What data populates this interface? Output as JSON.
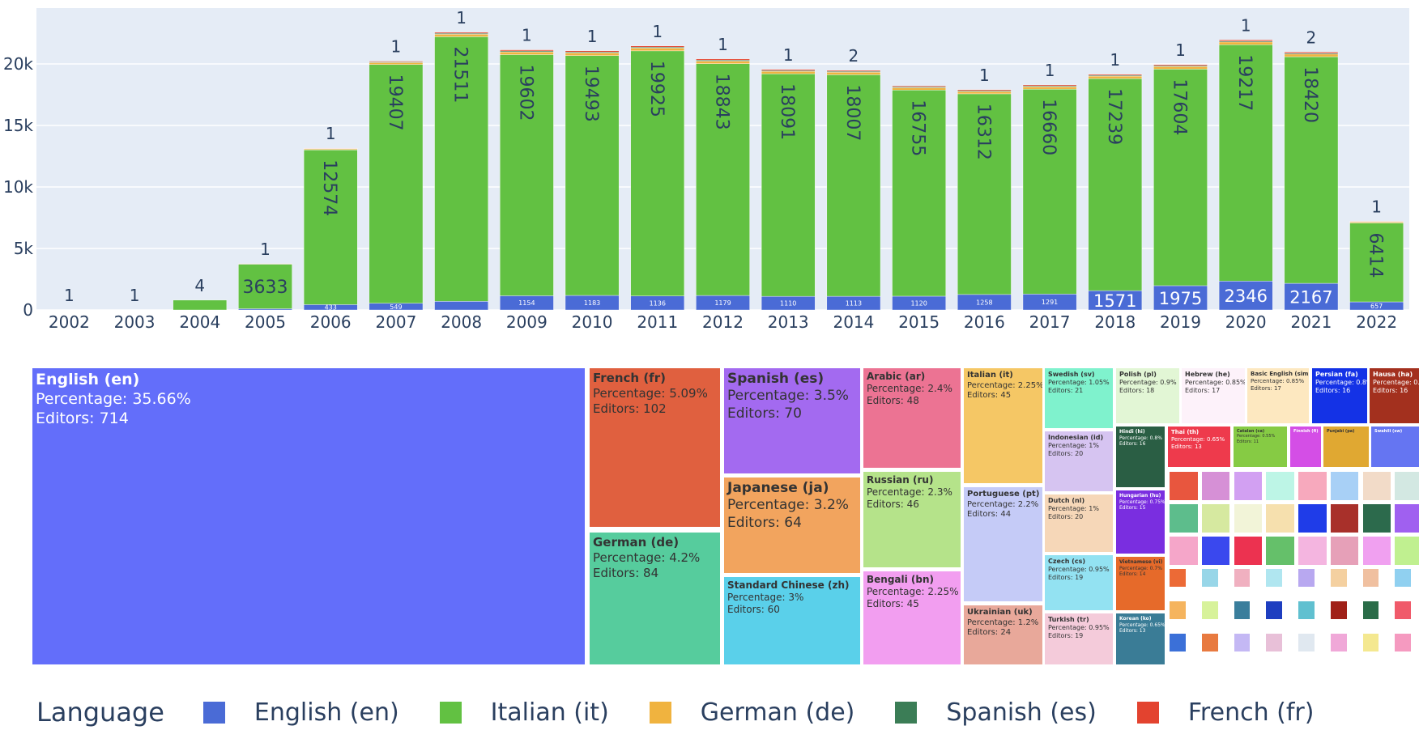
{
  "chart_data": [
    {
      "type": "bar",
      "title": "",
      "xlabel": "",
      "ylabel": "",
      "ylim": [
        0,
        25000
      ],
      "grid": true,
      "categories": [
        "2002",
        "2003",
        "2004",
        "2005",
        "2006",
        "2007",
        "2008",
        "2009",
        "2010",
        "2011",
        "2012",
        "2013",
        "2014",
        "2015",
        "2016",
        "2017",
        "2018",
        "2019",
        "2020",
        "2021",
        "2022"
      ],
      "yticks": [
        {
          "value": 0,
          "label": "0"
        },
        {
          "value": 5000,
          "label": "5k"
        },
        {
          "value": 10000,
          "label": "10k"
        },
        {
          "value": 15000,
          "label": "15k"
        },
        {
          "value": 20000,
          "label": "20k"
        }
      ],
      "series": [
        {
          "name": "English (en)",
          "color": "#4a6bd6",
          "values": [
            0,
            0,
            0,
            100,
            433,
            549,
            700,
            1154,
            1183,
            1136,
            1179,
            1110,
            1113,
            1120,
            1258,
            1291,
            1571,
            1975,
            2346,
            2167,
            657
          ],
          "labels": [
            "",
            "",
            "",
            "",
            "433",
            "549",
            "",
            "1154",
            "1183",
            "1136",
            "1179",
            "1110",
            "1113",
            "1120",
            "1258",
            "1291",
            "1571",
            "1975",
            "2346",
            "2167",
            "657"
          ]
        },
        {
          "name": "Italian (it)",
          "color": "#62c142",
          "values": [
            0,
            0,
            800,
            3633,
            12574,
            19407,
            21511,
            19602,
            19493,
            19925,
            18843,
            18091,
            18007,
            16755,
            16312,
            16660,
            17239,
            17604,
            19217,
            18420,
            6414
          ],
          "labels": [
            "",
            "",
            "",
            "3633",
            "12574",
            "19407",
            "21511",
            "19602",
            "19493",
            "19925",
            "18843",
            "18091",
            "18007",
            "16755",
            "16312",
            "16660",
            "17239",
            "17604",
            "19217",
            "18420",
            "6414"
          ]
        },
        {
          "name": "German (de)",
          "color": "#f0b33f",
          "values": [
            0,
            0,
            0,
            20,
            80,
            150,
            200,
            220,
            220,
            230,
            210,
            200,
            200,
            190,
            190,
            190,
            200,
            210,
            220,
            210,
            80
          ],
          "labels": []
        },
        {
          "name": "Spanish (es)",
          "color": "#3b7d56",
          "values": [
            0,
            0,
            0,
            5,
            30,
            60,
            80,
            80,
            80,
            80,
            80,
            70,
            70,
            70,
            70,
            70,
            70,
            70,
            80,
            80,
            30
          ],
          "labels": []
        },
        {
          "name": "French (fr)",
          "color": "#e3432f",
          "values": [
            0,
            0,
            0,
            5,
            30,
            60,
            80,
            90,
            90,
            90,
            90,
            80,
            80,
            80,
            80,
            80,
            80,
            80,
            90,
            90,
            30
          ],
          "labels": []
        }
      ],
      "top_labels": [
        "1",
        "1",
        "4",
        "1",
        "1",
        "1",
        "1",
        "1",
        "1",
        "1",
        "1",
        "1",
        "2",
        "",
        "1",
        "1",
        "1",
        "1",
        "1",
        "2",
        "1"
      ]
    },
    {
      "type": "treemap",
      "tiles": [
        {
          "name": "English (en)",
          "percentage": "Percentage: 35.66%",
          "editors": "Editors: 714",
          "color": "#636efa",
          "text_color": "#ffffff"
        },
        {
          "name": "French (fr)",
          "percentage": "Percentage: 5.09%",
          "editors": "Editors: 102",
          "color": "#e0603f",
          "text_color": "#333333"
        },
        {
          "name": "German (de)",
          "percentage": "Percentage: 4.2%",
          "editors": "Editors: 84",
          "color": "#56cc9d",
          "text_color": "#333333"
        },
        {
          "name": "Spanish (es)",
          "percentage": "Percentage: 3.5%",
          "editors": "Editors: 70",
          "color": "#a36af0",
          "text_color": "#333333"
        },
        {
          "name": "Japanese (ja)",
          "percentage": "Percentage: 3.2%",
          "editors": "Editors: 64",
          "color": "#f2a45e",
          "text_color": "#333333"
        },
        {
          "name": "Standard Chinese (zh)",
          "percentage": "Percentage: 3%",
          "editors": "Editors: 60",
          "color": "#5ad0ea",
          "text_color": "#333333"
        },
        {
          "name": "Arabic (ar)",
          "percentage": "Percentage: 2.4%",
          "editors": "Editors: 48",
          "color": "#ec7393",
          "text_color": "#333333"
        },
        {
          "name": "Russian (ru)",
          "percentage": "Percentage: 2.3%",
          "editors": "Editors: 46",
          "color": "#b5e38a",
          "text_color": "#333333"
        },
        {
          "name": "Bengali (bn)",
          "percentage": "Percentage: 2.25%",
          "editors": "Editors: 45",
          "color": "#f29ef0",
          "text_color": "#333333"
        },
        {
          "name": "Italian (it)",
          "percentage": "Percentage: 2.25%",
          "editors": "Editors: 45",
          "color": "#f5c765",
          "text_color": "#333333"
        },
        {
          "name": "Portuguese (pt)",
          "percentage": "Percentage: 2.2%",
          "editors": "Editors: 44",
          "color": "#c5cbf7",
          "text_color": "#333333"
        },
        {
          "name": "Ukrainian (uk)",
          "percentage": "Percentage: 1.2%",
          "editors": "Editors: 24",
          "color": "#e8a89a",
          "text_color": "#333333"
        },
        {
          "name": "Swedish (sv)",
          "percentage": "Percentage: 1.05%",
          "editors": "Editors: 21",
          "color": "#7ff2cd",
          "text_color": "#333333"
        },
        {
          "name": "Indonesian (id)",
          "percentage": "Percentage: 1%",
          "editors": "Editors: 20",
          "color": "#d6c4f1",
          "text_color": "#333333"
        },
        {
          "name": "Dutch (nl)",
          "percentage": "Percentage: 1%",
          "editors": "Editors: 20",
          "color": "#f6d7b8",
          "text_color": "#333333"
        },
        {
          "name": "Czech (cs)",
          "percentage": "Percentage: 0.95%",
          "editors": "Editors: 19",
          "color": "#93e2f2",
          "text_color": "#333333"
        },
        {
          "name": "Turkish (tr)",
          "percentage": "Percentage: 0.95%",
          "editors": "Editors: 19",
          "color": "#f4cbda",
          "text_color": "#333333"
        },
        {
          "name": "Polish (pl)",
          "percentage": "Percentage: 0.9%",
          "editors": "Editors: 18",
          "color": "#e2f6d5",
          "text_color": "#333333"
        },
        {
          "name": "Hebrew (he)",
          "percentage": "Percentage: 0.85%",
          "editors": "Editors: 17",
          "color": "#fdf2fa",
          "text_color": "#333333"
        },
        {
          "name": "Basic English (simple)",
          "percentage": "Percentage: 0.85%",
          "editors": "Editors: 17",
          "color": "#fde8c0",
          "text_color": "#333333"
        },
        {
          "name": "Persian (fa)",
          "percentage": "Percentage: 0.8%",
          "editors": "Editors: 16",
          "color": "#1432e6",
          "text_color": "#ffffff"
        },
        {
          "name": "Hausa (ha)",
          "percentage": "Percentage: 0.8%",
          "editors": "Editors: 16",
          "color": "#a3301e",
          "text_color": "#ffffff"
        },
        {
          "name": "Hindi (hi)",
          "percentage": "Percentage: 0.8%",
          "editors": "Editors: 16",
          "color": "#2a5e44",
          "text_color": "#ffffff"
        },
        {
          "name": "Thai (th)",
          "percentage": "Percentage: 0.65%",
          "editors": "Editors: 13",
          "color": "#ee3a4c",
          "text_color": "#ffffff"
        },
        {
          "name": "Catalan (ca)",
          "percentage": "Percentage: 0.55%",
          "editors": "Editors: 11",
          "color": "#86cb44",
          "text_color": "#333333"
        },
        {
          "name": "Finnish (fi)",
          "percentage": "",
          "editors": "",
          "color": "#d44ee6",
          "text_color": "#ffffff"
        },
        {
          "name": "Punjabi (pa)",
          "percentage": "",
          "editors": "",
          "color": "#e0a832",
          "text_color": "#333333"
        },
        {
          "name": "Swahili (sw)",
          "percentage": "",
          "editors": "",
          "color": "#6575f2",
          "text_color": "#ffffff"
        },
        {
          "name": "Hungarian (hu)",
          "percentage": "Percentage: 0.75%",
          "editors": "Editors: 15",
          "color": "#7a2ee0",
          "text_color": "#ffffff"
        },
        {
          "name": "Vietnamese (vi)",
          "percentage": "Percentage: 0.7%",
          "editors": "Editors: 14",
          "color": "#e66a2a",
          "text_color": "#333333"
        },
        {
          "name": "Korean (ko)",
          "percentage": "Percentage: 0.65%",
          "editors": "Editors: 13",
          "color": "#3a7c96",
          "text_color": "#ffffff"
        }
      ],
      "small_tile_colors": [
        "#e8563e",
        "#d690d6",
        "#d2a0f2",
        "#bdf5e6",
        "#f7a9bd",
        "#a8d0f6",
        "#f2dbc8",
        "#d3e8e2",
        "#5dbd8c",
        "#d6e9a0",
        "#f2f4d8",
        "#f6e0ae",
        "#1f3ce8",
        "#a8302a",
        "#2c6a4c",
        "#a060f0",
        "#f5a6c9",
        "#3a48ee",
        "#ec3250",
        "#65c06a",
        "#f4b5e0",
        "#e6a0b8",
        "#f0a0f0",
        "#c0f090",
        "#ec6a36",
        "#98d6e8",
        "#f0b0c0",
        "#b0e6f0",
        "#b8a8f0",
        "#f4d0a0",
        "#f0c0a0",
        "#90d0f0",
        "#f5b45e",
        "#d7f29a",
        "#3a7e9c",
        "#1e3ec0",
        "#60c0d0",
        "#a02018",
        "#2a6c48",
        "#f05a6a",
        "#3b70d8",
        "#e87a40",
        "#c4b8f4",
        "#e8c0d8",
        "#e0e8f0",
        "#f0a8d8",
        "#f4e890",
        "#f59ac0",
        "#f2a0c8",
        "#a0e8f0"
      ]
    }
  ],
  "legend": {
    "title": "Language",
    "items": [
      {
        "label": "English (en)",
        "color": "#4a6bd6"
      },
      {
        "label": "Italian (it)",
        "color": "#62c142"
      },
      {
        "label": "German (de)",
        "color": "#f0b33f"
      },
      {
        "label": "Spanish (es)",
        "color": "#3b7d56"
      },
      {
        "label": "French (fr)",
        "color": "#e3432f"
      }
    ]
  }
}
